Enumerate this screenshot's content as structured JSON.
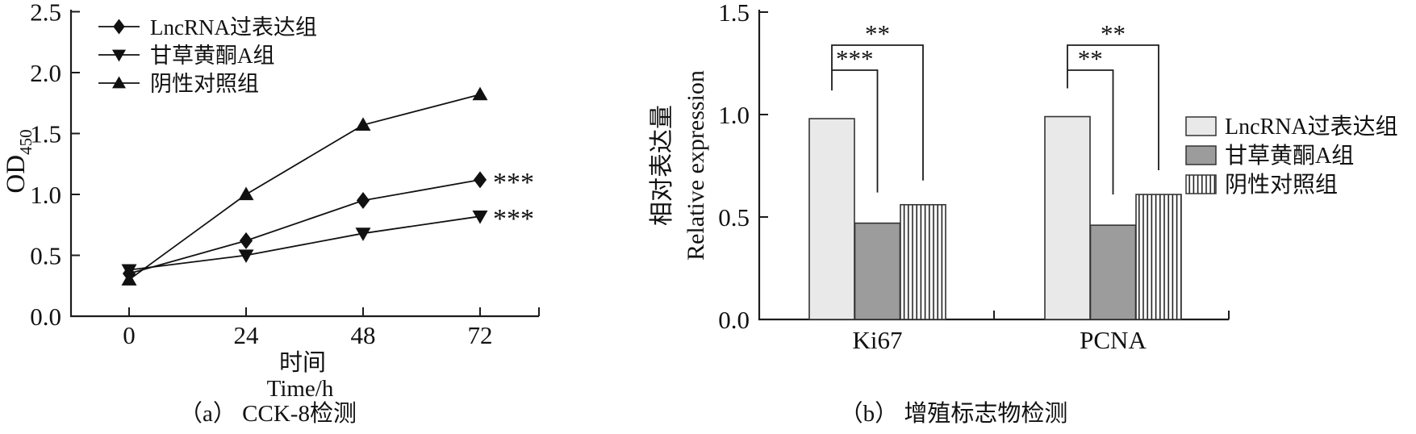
{
  "figure": {
    "background": "#ffffff",
    "panel_a": {
      "xlabel_zh": "时间",
      "xlabel_en": "Time/h",
      "caption": "（a） CCK-8检测"
    },
    "panel_b": {
      "caption": "（b） 增殖标志物检测"
    }
  },
  "colors": {
    "line": "#111111",
    "axis": "#1c1c1c",
    "bar_light": "#e9e9e9",
    "bar_gray": "#9c9c9c",
    "bar_stroke": "#333333",
    "stripe": "#222222"
  },
  "chart_data": [
    {
      "id": "cck8-line-chart",
      "type": "line",
      "caption": "（a） CCK-8检测",
      "xlabel": "时间 Time/h",
      "ylabel": "OD",
      "ylabel_sub": "450",
      "x": [
        0,
        24,
        48,
        72
      ],
      "xticklabels": [
        "0",
        "24",
        "48",
        "72"
      ],
      "ylim": [
        0,
        2.5
      ],
      "yticks": [
        0.0,
        0.5,
        1.0,
        1.5,
        2.0,
        2.5
      ],
      "grid": false,
      "legend_position": "top-left-inside",
      "series": [
        {
          "name": "LncRNA过表达组",
          "marker": "diamond",
          "values": [
            0.35,
            0.62,
            0.95,
            1.12
          ],
          "end_annotation": "***"
        },
        {
          "name": "甘草黄酮A组",
          "marker": "triangle-down",
          "values": [
            0.38,
            0.5,
            0.68,
            0.82
          ],
          "end_annotation": "***"
        },
        {
          "name": "阴性对照组",
          "marker": "triangle-up",
          "values": [
            0.3,
            1.0,
            1.57,
            1.82
          ],
          "end_annotation": ""
        }
      ]
    },
    {
      "id": "proliferation-bar-chart",
      "type": "bar",
      "caption": "（b） 增殖标志物检测",
      "ylabel_zh": "相对表达量",
      "ylabel_en": "Relative expression",
      "categories": [
        "Ki67",
        "PCNA"
      ],
      "ylim": [
        0,
        1.5
      ],
      "yticks": [
        0.0,
        0.5,
        1.0,
        1.5
      ],
      "grid": false,
      "legend_position": "right-outside",
      "series": [
        {
          "name": "LncRNA过表达组",
          "fill": "light",
          "values": [
            0.98,
            0.99
          ]
        },
        {
          "name": "甘草黄酮A组",
          "fill": "gray",
          "values": [
            0.47,
            0.46
          ]
        },
        {
          "name": "阴性对照组",
          "fill": "stripes",
          "values": [
            0.56,
            0.61
          ]
        }
      ],
      "significance": [
        {
          "category": "Ki67",
          "from": 0,
          "to": 1,
          "label": "***"
        },
        {
          "category": "Ki67",
          "from": 0,
          "to": 2,
          "label": "**"
        },
        {
          "category": "PCNA",
          "from": 0,
          "to": 1,
          "label": "**"
        },
        {
          "category": "PCNA",
          "from": 0,
          "to": 2,
          "label": "**"
        }
      ]
    }
  ]
}
